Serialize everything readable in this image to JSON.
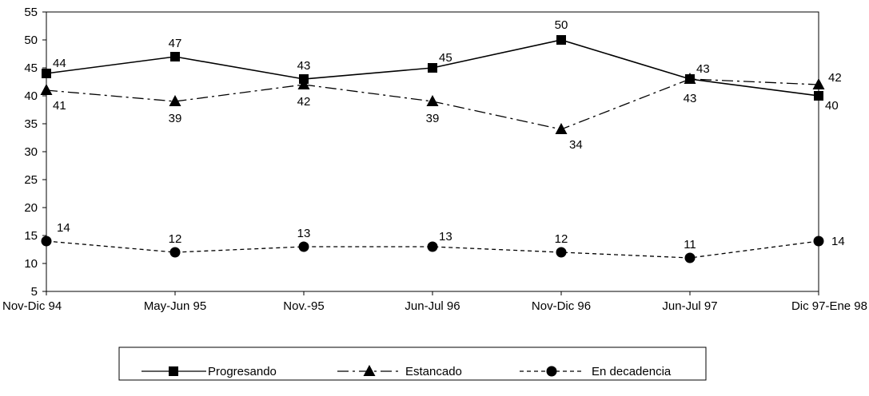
{
  "chart_data": {
    "type": "line",
    "title": "",
    "xlabel": "",
    "ylabel": "",
    "categories": [
      "Nov-Dic 94",
      "May-Jun 95",
      "Nov.-95",
      "Jun-Jul 96",
      "Nov-Dic 96",
      "Jun-Jul 97",
      "Dic 97-Ene 98"
    ],
    "ylim": [
      5,
      55
    ],
    "yticks": [
      5,
      10,
      15,
      20,
      25,
      30,
      35,
      40,
      45,
      50,
      55
    ],
    "grid": false,
    "legend_position": "bottom",
    "series": [
      {
        "name": "Progresando",
        "values": [
          44,
          47,
          43,
          45,
          50,
          43,
          40
        ],
        "marker": "square",
        "line": "solid"
      },
      {
        "name": "Estancado",
        "values": [
          41,
          39,
          42,
          39,
          34,
          43,
          42
        ],
        "marker": "triangle",
        "line": "dashdot"
      },
      {
        "name": "En decadencia",
        "values": [
          14,
          12,
          13,
          13,
          12,
          11,
          14
        ],
        "marker": "circle",
        "line": "dotted"
      }
    ]
  }
}
